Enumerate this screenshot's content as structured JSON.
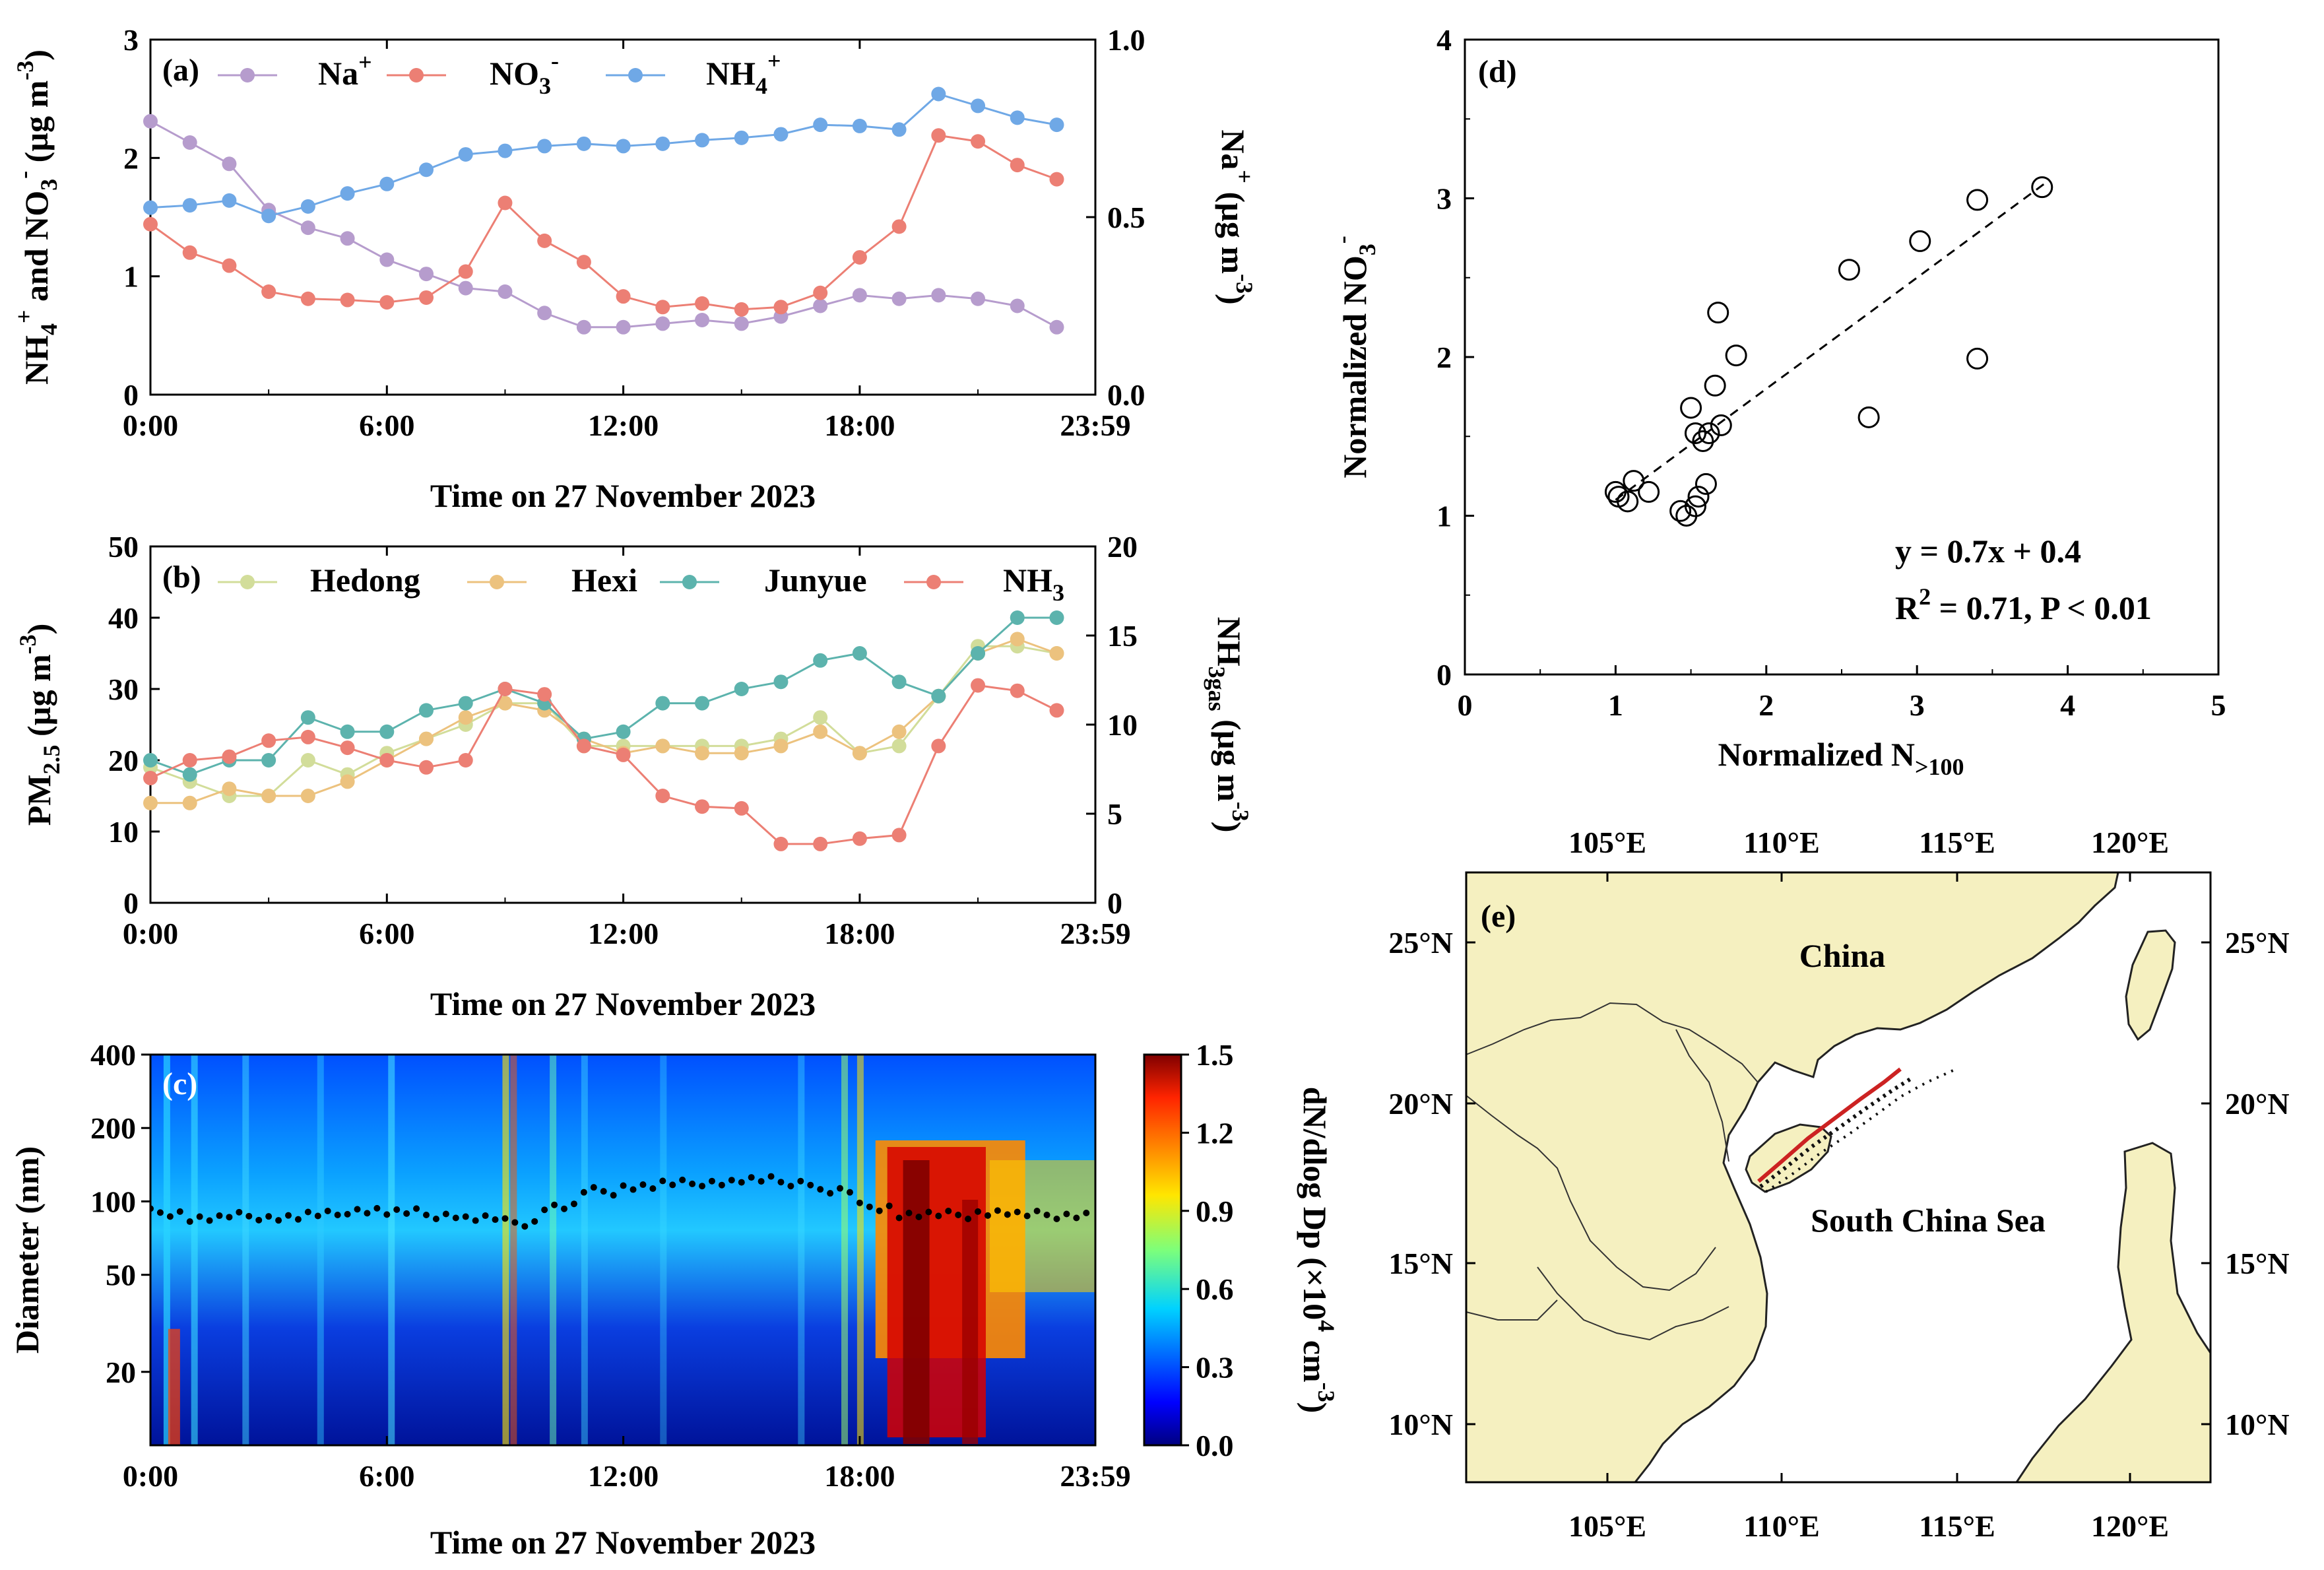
{
  "chart_data": [
    {
      "panel": "(a)",
      "type": "line",
      "xlabel": "Time on 27 November 2023",
      "x_ticks": [
        "0:00",
        "6:00",
        "12:00",
        "18:00",
        "23:59"
      ],
      "x_hours": [
        0,
        1,
        2,
        3,
        4,
        5,
        6,
        7,
        8,
        9,
        10,
        11,
        12,
        13,
        14,
        15,
        16,
        17,
        18,
        19,
        20,
        21,
        22,
        23
      ],
      "ylabel_left": "NH4+ and NO3- (µg m-3)",
      "ylabel_left_parts": {
        "a": "NH",
        "b": "4",
        "c": "+",
        "d": " and NO",
        "e": "3",
        "f": "-",
        "g": " (µg m",
        "h": "-3",
        "i": ")"
      },
      "ylim_left": [
        0,
        3
      ],
      "yticks_left": [
        "0",
        "1",
        "2",
        "3"
      ],
      "ylabel_right": "Na+ (µg m-3)",
      "ylabel_right_parts": {
        "a": "Na",
        "b": "+",
        "c": " (µg m",
        "d": "-3",
        "e": ")"
      },
      "ylim_right": [
        0,
        1
      ],
      "yticks_right": [
        "0.0",
        "0.5",
        "1.0"
      ],
      "series": [
        {
          "name": "Na+",
          "legend_base": "Na",
          "legend_sup": "+",
          "legend_sub": "",
          "axis": "right",
          "color": "#b69ccd",
          "values": [
            0.77,
            0.71,
            0.65,
            0.52,
            0.47,
            0.44,
            0.38,
            0.34,
            0.3,
            0.29,
            0.23,
            0.19,
            0.19,
            0.2,
            0.21,
            0.2,
            0.22,
            0.25,
            0.28,
            0.27,
            0.28,
            0.27,
            0.25,
            0.19
          ]
        },
        {
          "name": "NO3-",
          "legend_base": "NO",
          "legend_sup": "-",
          "legend_sub": "3",
          "axis": "left",
          "color": "#ec7f74",
          "values": [
            1.44,
            1.2,
            1.09,
            0.87,
            0.81,
            0.8,
            0.78,
            0.82,
            1.04,
            1.62,
            1.3,
            1.12,
            0.83,
            0.74,
            0.77,
            0.72,
            0.74,
            0.86,
            1.16,
            1.42,
            2.19,
            2.14,
            1.94,
            1.82
          ]
        },
        {
          "name": "NH4+",
          "legend_base": "NH",
          "legend_sup": "+",
          "legend_sub": "4",
          "axis": "left",
          "color": "#6fa8e6",
          "values": [
            1.58,
            1.6,
            1.64,
            1.51,
            1.59,
            1.7,
            1.78,
            1.9,
            2.03,
            2.06,
            2.1,
            2.12,
            2.1,
            2.12,
            2.15,
            2.17,
            2.2,
            2.28,
            2.27,
            2.24,
            2.54,
            2.44,
            2.34,
            2.28
          ]
        }
      ]
    },
    {
      "panel": "(b)",
      "type": "line",
      "xlabel": "Time on 27 November 2023",
      "x_ticks": [
        "0:00",
        "6:00",
        "12:00",
        "18:00",
        "23:59"
      ],
      "ylabel_left": "PM2.5 (µg m-3)",
      "ylabel_left_parts": {
        "a": "PM",
        "b": "2.5",
        "c": " (µg m",
        "d": "-3",
        "e": ")"
      },
      "ylim_left": [
        0,
        50
      ],
      "yticks_left": [
        "0",
        "10",
        "20",
        "30",
        "40",
        "50"
      ],
      "ylabel_right": "NH3gas (µg m-3)",
      "ylabel_right_parts": {
        "a": "NH",
        "b": "3gas",
        "c": " (µg m",
        "d": "-3",
        "e": ")"
      },
      "ylim_right": [
        0,
        20
      ],
      "yticks_right": [
        "0",
        "5",
        "10",
        "15",
        "20"
      ],
      "series": [
        {
          "name": "Hedong",
          "legend_base": "Hedong",
          "legend_sup": "",
          "legend_sub": "",
          "axis": "left",
          "color": "#d2dd9a",
          "values": [
            19,
            17,
            15,
            15,
            20,
            18,
            21,
            23,
            25,
            28,
            28,
            22,
            22,
            22,
            22,
            22,
            23,
            26,
            21,
            22,
            29,
            36,
            36,
            35
          ]
        },
        {
          "name": "Hexi",
          "legend_base": "Hexi",
          "legend_sup": "",
          "legend_sub": "",
          "axis": "left",
          "color": "#ecc27e",
          "values": [
            14,
            14,
            16,
            15,
            15,
            17,
            20,
            23,
            26,
            28,
            27,
            23,
            21,
            22,
            21,
            21,
            22,
            24,
            21,
            24,
            29,
            35,
            37,
            35
          ]
        },
        {
          "name": "Junyue",
          "legend_base": "Junyue",
          "legend_sup": "",
          "legend_sub": "",
          "axis": "left",
          "color": "#5cb3ad",
          "values": [
            20,
            18,
            20,
            20,
            26,
            24,
            24,
            27,
            28,
            30,
            28,
            23,
            24,
            28,
            28,
            30,
            31,
            34,
            35,
            31,
            29,
            35,
            40,
            40
          ]
        },
        {
          "name": "NH3",
          "legend_base": "NH",
          "legend_sup": "",
          "legend_sub": "3",
          "axis": "right",
          "color": "#ec7f74",
          "values": [
            7.0,
            8.0,
            8.2,
            9.1,
            9.3,
            8.7,
            8.0,
            7.6,
            8.0,
            12.0,
            11.7,
            8.8,
            8.3,
            6.0,
            5.4,
            5.3,
            3.3,
            3.3,
            3.6,
            3.8,
            8.8,
            12.2,
            11.9,
            10.8
          ]
        }
      ]
    },
    {
      "panel": "(c)",
      "type": "heatmap",
      "xlabel": "Time on 27 November 2023",
      "x_ticks": [
        "0:00",
        "6:00",
        "12:00",
        "18:00",
        "23:59"
      ],
      "ylabel": "Diameter (nm)",
      "yscale": "log",
      "ylim": [
        10,
        400
      ],
      "y_tick_values": [
        20,
        50,
        100,
        200,
        400
      ],
      "y_ticks": [
        "20",
        "50",
        "100",
        "200",
        "400"
      ],
      "colorbar_label": "dN/dlog Dp (×10^4 cm^-3)",
      "colorbar_label_parts": {
        "a": "dN/dlog Dp (×10",
        "b": "4",
        "c": " cm",
        "d": "-3",
        "e": ")"
      },
      "colorbar_range": [
        0,
        1.5
      ],
      "colorbar_ticks": [
        "0.0",
        "0.3",
        "0.6",
        "0.9",
        "1.2",
        "1.5"
      ],
      "mode_diameter_hourly_nm": [
        90,
        85,
        87,
        86,
        88,
        92,
        90,
        88,
        85,
        82,
        95,
        110,
        115,
        118,
        120,
        122,
        120,
        110,
        95,
        88,
        88,
        90,
        88,
        88
      ]
    },
    {
      "panel": "(d)",
      "type": "scatter",
      "xlabel": "Normalized N>100",
      "xlabel_parts": {
        "a": "Normalized N",
        "b": ">100"
      },
      "ylabel": "Normalized NO3-",
      "ylabel_parts": {
        "a": "Normalized NO",
        "b": "3",
        "c": "-"
      },
      "xlim": [
        0,
        5
      ],
      "ylim": [
        0,
        4
      ],
      "x_ticks": [
        "0",
        "1",
        "2",
        "3",
        "4",
        "5"
      ],
      "y_ticks": [
        "0",
        "1",
        "2",
        "3",
        "4"
      ],
      "x": [
        1.0,
        1.02,
        1.12,
        1.08,
        1.22,
        1.43,
        1.47,
        1.53,
        1.55,
        1.6,
        1.58,
        1.62,
        1.66,
        1.7,
        1.5,
        1.53,
        1.68,
        1.8,
        2.55,
        2.68,
        3.02,
        3.4,
        3.4,
        3.83
      ],
      "y": [
        1.15,
        1.12,
        1.22,
        1.09,
        1.15,
        1.03,
        1.0,
        1.06,
        1.12,
        1.2,
        1.47,
        1.52,
        1.82,
        1.57,
        1.68,
        1.52,
        2.28,
        2.01,
        2.55,
        1.62,
        2.73,
        2.99,
        1.99,
        3.07
      ],
      "fit": {
        "slope": 0.7,
        "intercept": 0.4,
        "x_range": [
          1.0,
          3.85
        ]
      },
      "annotation_line1": "y = 0.7x + 0.4",
      "annotation_r2": {
        "a": "R",
        "b": "2",
        "c": " = 0.71, P < 0.01"
      }
    }
  ],
  "map": {
    "panel": "(e)",
    "lon_ticks": [
      "105°E",
      "110°E",
      "115°E",
      "120°E"
    ],
    "lat_ticks": [
      "25°N",
      "20°N",
      "15°N",
      "10°N"
    ],
    "labels": {
      "china": "China",
      "sea": "South China Sea"
    },
    "colors": {
      "land": "#f5f0c0",
      "sea": "#ffffff",
      "coast": "#222222",
      "track": "#cc2222"
    }
  }
}
